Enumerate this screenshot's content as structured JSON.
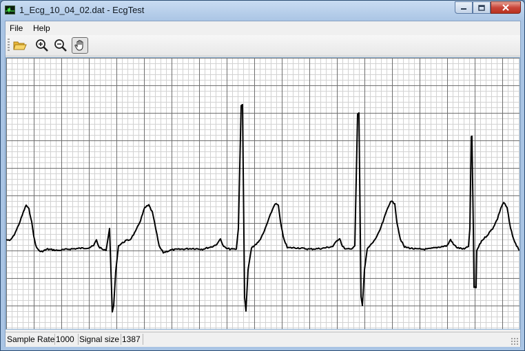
{
  "window": {
    "title": "1_Ecg_10_04_02.dat - EcgTest",
    "app_icon": "ecg-app-icon",
    "controls": [
      "minimize-icon",
      "maximize-icon",
      "close-icon"
    ]
  },
  "menubar": {
    "items": [
      "File",
      "Help"
    ]
  },
  "toolbar": {
    "buttons": [
      {
        "name": "open-folder-button",
        "icon": "folder-open-icon"
      },
      {
        "name": "zoom-in-button",
        "icon": "zoom-in-icon"
      },
      {
        "name": "zoom-out-button",
        "icon": "zoom-out-icon"
      },
      {
        "name": "pan-hand-button",
        "icon": "hand-icon",
        "active": true
      }
    ]
  },
  "chart_data": {
    "type": "line",
    "grid": true,
    "grid_color_minor": "#d2d2d2",
    "grid_color_major": "#6e6e6e",
    "line_color": "#000000",
    "series": [
      {
        "points": [
          [
            0,
            316
          ],
          [
            5,
            318
          ],
          [
            10,
            312
          ],
          [
            15,
            302
          ],
          [
            20,
            290
          ],
          [
            25,
            276
          ],
          [
            29,
            266
          ],
          [
            33,
            272
          ],
          [
            37,
            290
          ],
          [
            40,
            312
          ],
          [
            44,
            328
          ],
          [
            50,
            334
          ],
          [
            60,
            330
          ],
          [
            75,
            332
          ],
          [
            90,
            330
          ],
          [
            105,
            329
          ],
          [
            120,
            328
          ],
          [
            127,
            325
          ],
          [
            131,
            316
          ],
          [
            134,
            326
          ],
          [
            139,
            330
          ],
          [
            145,
            332
          ],
          [
            150,
            300
          ],
          [
            154,
            420
          ],
          [
            156,
            412
          ],
          [
            159,
            362
          ],
          [
            163,
            325
          ],
          [
            173,
            318
          ],
          [
            180,
            316
          ],
          [
            188,
            304
          ],
          [
            195,
            288
          ],
          [
            201,
            270
          ],
          [
            207,
            266
          ],
          [
            212,
            276
          ],
          [
            217,
            300
          ],
          [
            222,
            326
          ],
          [
            228,
            335
          ],
          [
            240,
            331
          ],
          [
            255,
            330
          ],
          [
            270,
            329
          ],
          [
            285,
            330
          ],
          [
            300,
            326
          ],
          [
            307,
            322
          ],
          [
            311,
            314
          ],
          [
            314,
            324
          ],
          [
            319,
            329
          ],
          [
            326,
            330
          ],
          [
            334,
            330
          ],
          [
            337,
            300
          ],
          [
            341,
            122
          ],
          [
            343,
            120
          ],
          [
            346,
            400
          ],
          [
            348,
            420
          ],
          [
            351,
            360
          ],
          [
            356,
            328
          ],
          [
            366,
            320
          ],
          [
            373,
            308
          ],
          [
            379,
            292
          ],
          [
            385,
            276
          ],
          [
            390,
            264
          ],
          [
            395,
            266
          ],
          [
            398,
            290
          ],
          [
            402,
            312
          ],
          [
            408,
            328
          ],
          [
            422,
            328
          ],
          [
            440,
            330
          ],
          [
            458,
            329
          ],
          [
            474,
            326
          ],
          [
            480,
            318
          ],
          [
            484,
            314
          ],
          [
            488,
            326
          ],
          [
            493,
            330
          ],
          [
            500,
            330
          ],
          [
            506,
            325
          ],
          [
            510,
            134
          ],
          [
            512,
            132
          ],
          [
            515,
            400
          ],
          [
            517,
            412
          ],
          [
            520,
            360
          ],
          [
            524,
            330
          ],
          [
            534,
            318
          ],
          [
            541,
            306
          ],
          [
            547,
            290
          ],
          [
            553,
            272
          ],
          [
            558,
            260
          ],
          [
            564,
            264
          ],
          [
            567,
            290
          ],
          [
            572,
            315
          ],
          [
            578,
            327
          ],
          [
            595,
            330
          ],
          [
            612,
            330
          ],
          [
            628,
            327
          ],
          [
            640,
            325
          ],
          [
            645,
            316
          ],
          [
            649,
            323
          ],
          [
            655,
            328
          ],
          [
            665,
            330
          ],
          [
            671,
            326
          ],
          [
            673,
            300
          ],
          [
            675,
            166
          ],
          [
            676,
            166
          ],
          [
            678,
            300
          ],
          [
            679,
            386
          ],
          [
            682,
            386
          ],
          [
            683,
            332
          ],
          [
            690,
            318
          ],
          [
            698,
            310
          ],
          [
            706,
            300
          ],
          [
            713,
            286
          ],
          [
            718,
            270
          ],
          [
            722,
            262
          ],
          [
            727,
            270
          ],
          [
            732,
            300
          ],
          [
            738,
            320
          ],
          [
            745,
            332
          ]
        ]
      }
    ]
  },
  "statusbar": {
    "sample_rate_label": "Sample Rate",
    "sample_rate_value": "1000",
    "signal_size_label": "Signal size",
    "signal_size_value": "1387"
  }
}
